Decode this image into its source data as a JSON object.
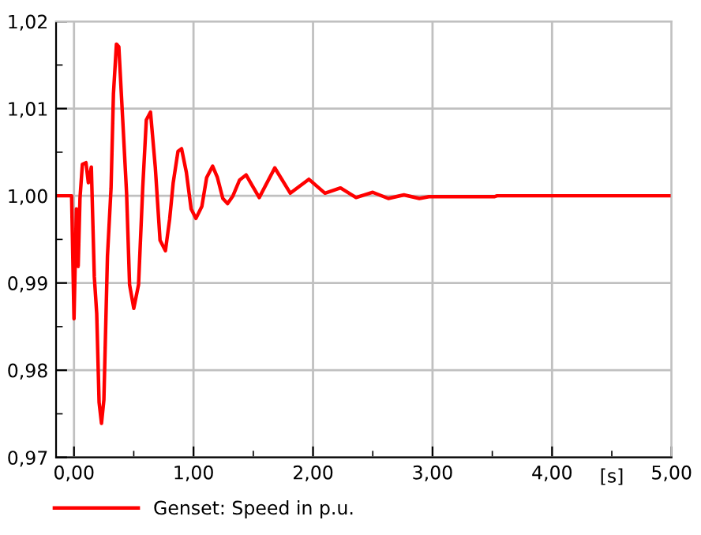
{
  "chart_data": {
    "type": "line",
    "xlabel": "[s]",
    "legend": "bottom",
    "grid": true,
    "line_style": "solid",
    "xlim": [
      -0.15,
      5
    ],
    "ylim": [
      0.97,
      1.02
    ],
    "xticks": [
      {
        "value": 0,
        "label": "0,00"
      },
      {
        "value": 1,
        "label": "1,00"
      },
      {
        "value": 2,
        "label": "2,00"
      },
      {
        "value": 3,
        "label": "3,00"
      },
      {
        "value": 4,
        "label": "4,00"
      },
      {
        "value": 5,
        "label": "5,00"
      }
    ],
    "yticks": [
      {
        "value": 0.97,
        "label": "0,97"
      },
      {
        "value": 0.98,
        "label": "0,98"
      },
      {
        "value": 0.99,
        "label": "0,99"
      },
      {
        "value": 1.0,
        "label": "1,00"
      },
      {
        "value": 1.01,
        "label": "1,01"
      },
      {
        "value": 1.02,
        "label": "1,02"
      }
    ],
    "series": [
      {
        "name": "Genset: Speed in p.u.",
        "color": "#ff0000",
        "x": [
          -0.15,
          -0.02,
          0.0,
          0.02,
          0.035,
          0.05,
          0.07,
          0.1,
          0.12,
          0.145,
          0.17,
          0.19,
          0.21,
          0.23,
          0.25,
          0.28,
          0.31,
          0.33,
          0.355,
          0.375,
          0.41,
          0.44,
          0.465,
          0.5,
          0.54,
          0.575,
          0.605,
          0.64,
          0.68,
          0.72,
          0.765,
          0.8,
          0.83,
          0.87,
          0.9,
          0.94,
          0.98,
          1.02,
          1.07,
          1.11,
          1.16,
          1.2,
          1.245,
          1.285,
          1.33,
          1.385,
          1.44,
          1.49,
          1.55,
          1.68,
          1.81,
          1.965,
          2.1,
          2.23,
          2.36,
          2.5,
          2.63,
          2.76,
          2.89,
          2.97,
          3.52,
          3.54,
          5.0
        ],
        "values": [
          1.0,
          1.0,
          0.9859,
          0.9985,
          0.9919,
          0.9997,
          1.0036,
          1.0038,
          1.0015,
          1.0033,
          0.9907,
          0.9865,
          0.9763,
          0.9739,
          0.9766,
          0.9931,
          1.0009,
          1.0117,
          1.0174,
          1.0171,
          1.0081,
          1.0003,
          0.9898,
          0.9871,
          0.9898,
          1.0009,
          1.0087,
          1.0096,
          1.0033,
          0.9949,
          0.9937,
          0.9973,
          1.0015,
          1.0051,
          1.0054,
          1.0027,
          0.9985,
          0.9974,
          0.9988,
          1.0021,
          1.0034,
          1.0021,
          0.9997,
          0.9991,
          1.0,
          1.0018,
          1.0024,
          1.0012,
          0.9998,
          1.0032,
          1.0003,
          1.0019,
          1.0003,
          1.0009,
          0.9998,
          1.0004,
          0.9997,
          1.0001,
          0.9997,
          0.9999,
          0.9999,
          1.0,
          1.0
        ]
      }
    ]
  }
}
